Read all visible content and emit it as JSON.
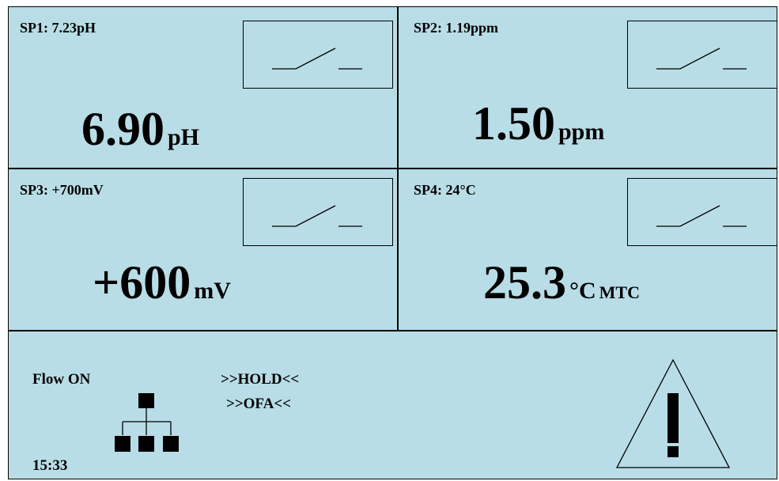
{
  "channels": [
    {
      "setpoint": "SP1: 7.23pH",
      "value": "6.90",
      "unit": "pH",
      "extra": ""
    },
    {
      "setpoint": "SP2: 1.19ppm",
      "value": "1.50",
      "unit": "ppm",
      "extra": ""
    },
    {
      "setpoint": "SP3: +700mV",
      "value": "+600",
      "unit": "mV",
      "extra": ""
    },
    {
      "setpoint": "SP4: 24°C",
      "value": "25.3",
      "unit": "°C",
      "extra": "MTC"
    }
  ],
  "footer": {
    "flow": "Flow ON",
    "hold": ">>HOLD<<",
    "ofa": ">>OFA<<",
    "time": "15:33"
  },
  "icons": {
    "relay": "relay-switch-open-icon",
    "network": "network-tree-icon",
    "warning": "warning-triangle-icon"
  }
}
